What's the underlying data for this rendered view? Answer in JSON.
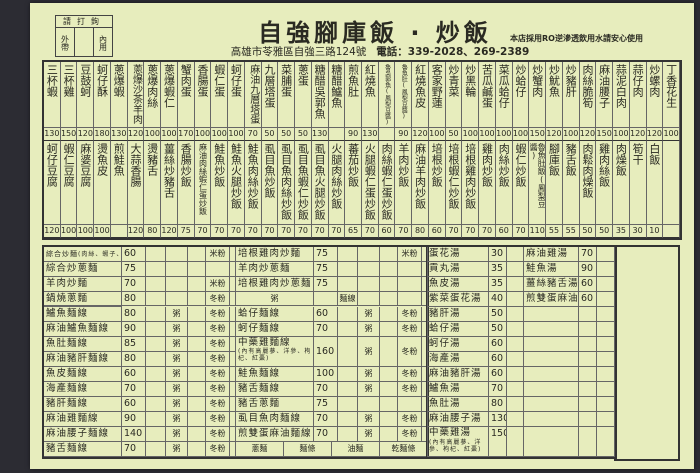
{
  "header": {
    "order_box": {
      "title": "請打鉤",
      "takeout": "外帶",
      "dine_in": "內用"
    },
    "title": "自強腳庫飯 · 炒飯",
    "address": "高雄市苓雅區自強三路124號",
    "phone": "電話：339-2028、269-2389",
    "notice": "本店採用RO逆滲透飲用水請安心使用"
  },
  "top_menu": {
    "row1": [
      {
        "name": "三杯蝦",
        "price": "130"
      },
      {
        "name": "三杯雞",
        "price": "150"
      },
      {
        "name": "豆鼓蚵",
        "price": "120"
      },
      {
        "name": "蚵仔酥",
        "price": "180"
      },
      {
        "name": "蔥爆蝦",
        "price": "130"
      },
      {
        "name": "蔥爆沙茶羊肉",
        "price": "120"
      },
      {
        "name": "蔥爆肉絲",
        "price": "100"
      },
      {
        "name": "蔥爆蝦仁",
        "price": "100"
      },
      {
        "name": "蟹肉蛋",
        "price": "170"
      },
      {
        "name": "香腸蛋",
        "price": "100"
      },
      {
        "name": "蝦仁蛋",
        "price": "100"
      },
      {
        "name": "蚵仔蛋",
        "price": "100"
      },
      {
        "name": "麻油九層塔蛋",
        "price": "70"
      },
      {
        "name": "九層塔蛋",
        "price": "50"
      },
      {
        "name": "菜脯蛋",
        "price": "50"
      },
      {
        "name": "蔥蛋",
        "price": "50"
      },
      {
        "name": "糖醋吳郭魚",
        "price": "130"
      },
      {
        "name": "糖醋鱸魚",
        "price": ""
      },
      {
        "name": "煎魚肚",
        "price": "90"
      },
      {
        "name": "紅燒魚",
        "price": "130"
      },
      {
        "name": "魯吳郭魚(鳳梨豆醬)",
        "price": ""
      },
      {
        "name": "魯魚肚(鳳梨豆醬)",
        "price": "90"
      },
      {
        "name": "紅燒魚皮",
        "price": "120"
      },
      {
        "name": "客家野蓮",
        "price": "100"
      },
      {
        "name": "炒青菜",
        "price": "50"
      },
      {
        "name": "炒黑輪",
        "price": "100"
      },
      {
        "name": "苦瓜鹹蛋",
        "price": "100"
      },
      {
        "name": "菜瓜蛤仔",
        "price": "100"
      },
      {
        "name": "炒蛤仔",
        "price": "100"
      },
      {
        "name": "炒蟹肉",
        "price": "150"
      },
      {
        "name": "炒魷魚",
        "price": "120"
      },
      {
        "name": "炒豬肝",
        "price": "100"
      },
      {
        "name": "肉絲脆筍",
        "price": "120"
      },
      {
        "name": "麻油腰子",
        "price": "150"
      },
      {
        "name": "蒜泥白肉",
        "price": "100"
      },
      {
        "name": "蒜仔肉",
        "price": "120"
      },
      {
        "name": "炒螺肉",
        "price": "120"
      },
      {
        "name": "丁香花生",
        "price": "100"
      }
    ],
    "row2": [
      {
        "name": "蚵仔豆腐",
        "price": "120"
      },
      {
        "name": "蝦仁豆腐",
        "price": "100"
      },
      {
        "name": "麻婆豆腐",
        "price": "100"
      },
      {
        "name": "燙魚皮",
        "price": "100"
      },
      {
        "name": "煎鮭魚",
        "price": ""
      },
      {
        "name": "大蒜香腸",
        "price": "120"
      },
      {
        "name": "燙豬舌",
        "price": "80"
      },
      {
        "name": "薑絲炒豬舌",
        "price": "120"
      },
      {
        "name": "香腸炒飯",
        "price": "75"
      },
      {
        "name": "麻油肉絲蝦仁蛋炒飯",
        "price": "70"
      },
      {
        "name": "鮭魚炒飯",
        "price": "70"
      },
      {
        "name": "鮭魚火腿炒飯",
        "price": "70"
      },
      {
        "name": "鮭魚肉絲炒飯",
        "price": "70"
      },
      {
        "name": "虱目魚炒飯",
        "price": "70"
      },
      {
        "name": "虱目魚肉絲炒飯",
        "price": "70"
      },
      {
        "name": "虱目魚蝦仁炒飯",
        "price": "70"
      },
      {
        "name": "虱目魚火腿炒飯",
        "price": "70"
      },
      {
        "name": "火腿肉絲炒飯",
        "price": "70"
      },
      {
        "name": "蕃茄炒飯",
        "price": "65"
      },
      {
        "name": "火腿蝦仁蛋炒飯",
        "price": "70"
      },
      {
        "name": "肉絲蝦仁蛋炒飯",
        "price": "60"
      },
      {
        "name": "羊肉炒飯",
        "price": "70"
      },
      {
        "name": "麻油羊肉炒飯",
        "price": "80"
      },
      {
        "name": "培根炒飯",
        "price": "60"
      },
      {
        "name": "培根蝦仁炒飯",
        "price": "70"
      },
      {
        "name": "培根雞肉炒飯",
        "price": "70"
      },
      {
        "name": "雞肉炒飯",
        "price": "70"
      },
      {
        "name": "肉絲炒飯",
        "price": "60"
      },
      {
        "name": "蝦仁炒飯",
        "price": "70"
      },
      {
        "name": "魯魚肚飯(鳳梨豆醬)",
        "price": "110"
      },
      {
        "name": "腳庫飯",
        "price": "55"
      },
      {
        "name": "豬舌飯",
        "price": "55"
      },
      {
        "name": "肉鬆肉燥飯",
        "price": "50"
      },
      {
        "name": "雞肉絲飯",
        "price": "50"
      },
      {
        "name": "肉燥飯",
        "price": "35"
      },
      {
        "name": "筍干",
        "price": "30"
      },
      {
        "name": "白飯",
        "price": "10"
      },
      {
        "name": "",
        "price": ""
      }
    ]
  },
  "noodles": {
    "fried_rows": [
      {
        "left": {
          "name": "綜合炒麵",
          "note": "(肉絲、蝦子、魷魚)",
          "price": "60",
          "opt": "米粉"
        },
        "right": {
          "name": "培根雞肉炒麵",
          "price": "75",
          "opt": "米粉"
        }
      },
      {
        "left": {
          "name": "綜合炒蔥麵",
          "price": "75",
          "opt": ""
        },
        "right": {
          "name": "羊肉炒蔥麵",
          "price": "75",
          "opt": ""
        }
      },
      {
        "left": {
          "name": "羊肉炒麵",
          "price": "70",
          "opt": "米粉"
        },
        "right": {
          "name": "培根雞肉炒蔥麵",
          "price": "75",
          "opt": ""
        }
      },
      {
        "left": {
          "name": "鍋燒蔥麵",
          "price": "80",
          "opt": "冬粉"
        },
        "right": {
          "opt1": "粥",
          "opt2": "麵線"
        }
      }
    ],
    "option_porridge": "粥",
    "option_vermicelli": "冬粉",
    "left": [
      {
        "name": "鱸魚麵線",
        "price": "80"
      },
      {
        "name": "麻油鱸魚麵線",
        "price": "90"
      },
      {
        "name": "魚肚麵線",
        "price": "85"
      },
      {
        "name": "麻油豬肝麵線",
        "price": "80"
      },
      {
        "name": "魚皮麵線",
        "price": "60"
      },
      {
        "name": "海產麵線",
        "price": "70"
      },
      {
        "name": "豬肝麵線",
        "price": "60"
      },
      {
        "name": "麻油雞麵線",
        "price": "90"
      },
      {
        "name": "麻油腰子麵線",
        "price": "140"
      },
      {
        "name": "豬舌麵線",
        "price": "70"
      }
    ],
    "right": [
      {
        "name": "蛤仔麵線",
        "price": "60",
        "options": true
      },
      {
        "name": "蚵仔麵線",
        "price": "70",
        "options": true
      },
      {
        "name": "中藥雞麵線",
        "note": "(內有高麗蔘、洋參、枸杞、紅棗)",
        "price": "160",
        "options": true
      },
      {
        "name": "鮭魚麵線",
        "price": "100",
        "options": true
      },
      {
        "name": "豬舌麵線",
        "price": "70",
        "options": true
      },
      {
        "name": "豬舌蔥麵",
        "price": "75",
        "options": false
      },
      {
        "name": "虱目魚肉麵線",
        "price": "70",
        "options": true
      },
      {
        "name": "煎雙蛋麻油麵線",
        "price": "70",
        "options": true
      }
    ],
    "noodle_types": [
      "蔥麵",
      "麵條",
      "油麵",
      "乾麵條"
    ]
  },
  "soups": {
    "left": [
      {
        "name": "蛋花湯",
        "price": "30"
      },
      {
        "name": "貢丸湯",
        "price": "35"
      },
      {
        "name": "魚皮湯",
        "price": "35"
      },
      {
        "name": "紫菜蛋花湯",
        "price": "40"
      },
      {
        "name": "豬肝湯",
        "price": "50"
      },
      {
        "name": "蛤仔湯",
        "price": "50"
      },
      {
        "name": "蚵仔湯",
        "price": "60"
      },
      {
        "name": "海產湯",
        "price": "60"
      },
      {
        "name": "麻油豬肝湯",
        "price": "60"
      },
      {
        "name": "鱸魚湯",
        "price": "70"
      },
      {
        "name": "魚肚湯",
        "price": "80"
      },
      {
        "name": "麻油腰子湯",
        "price": "130"
      },
      {
        "name": "中藥雞湯",
        "note": "(內有高麗蔘、洋參、枸杞、紅棗)",
        "price": "150"
      }
    ],
    "right": [
      {
        "name": "麻油雞湯",
        "price": "70"
      },
      {
        "name": "鮭魚湯",
        "price": "90"
      },
      {
        "name": "薑絲豬舌湯",
        "price": "60"
      },
      {
        "name": "煎雙蛋麻油湯",
        "price": "60"
      }
    ]
  }
}
